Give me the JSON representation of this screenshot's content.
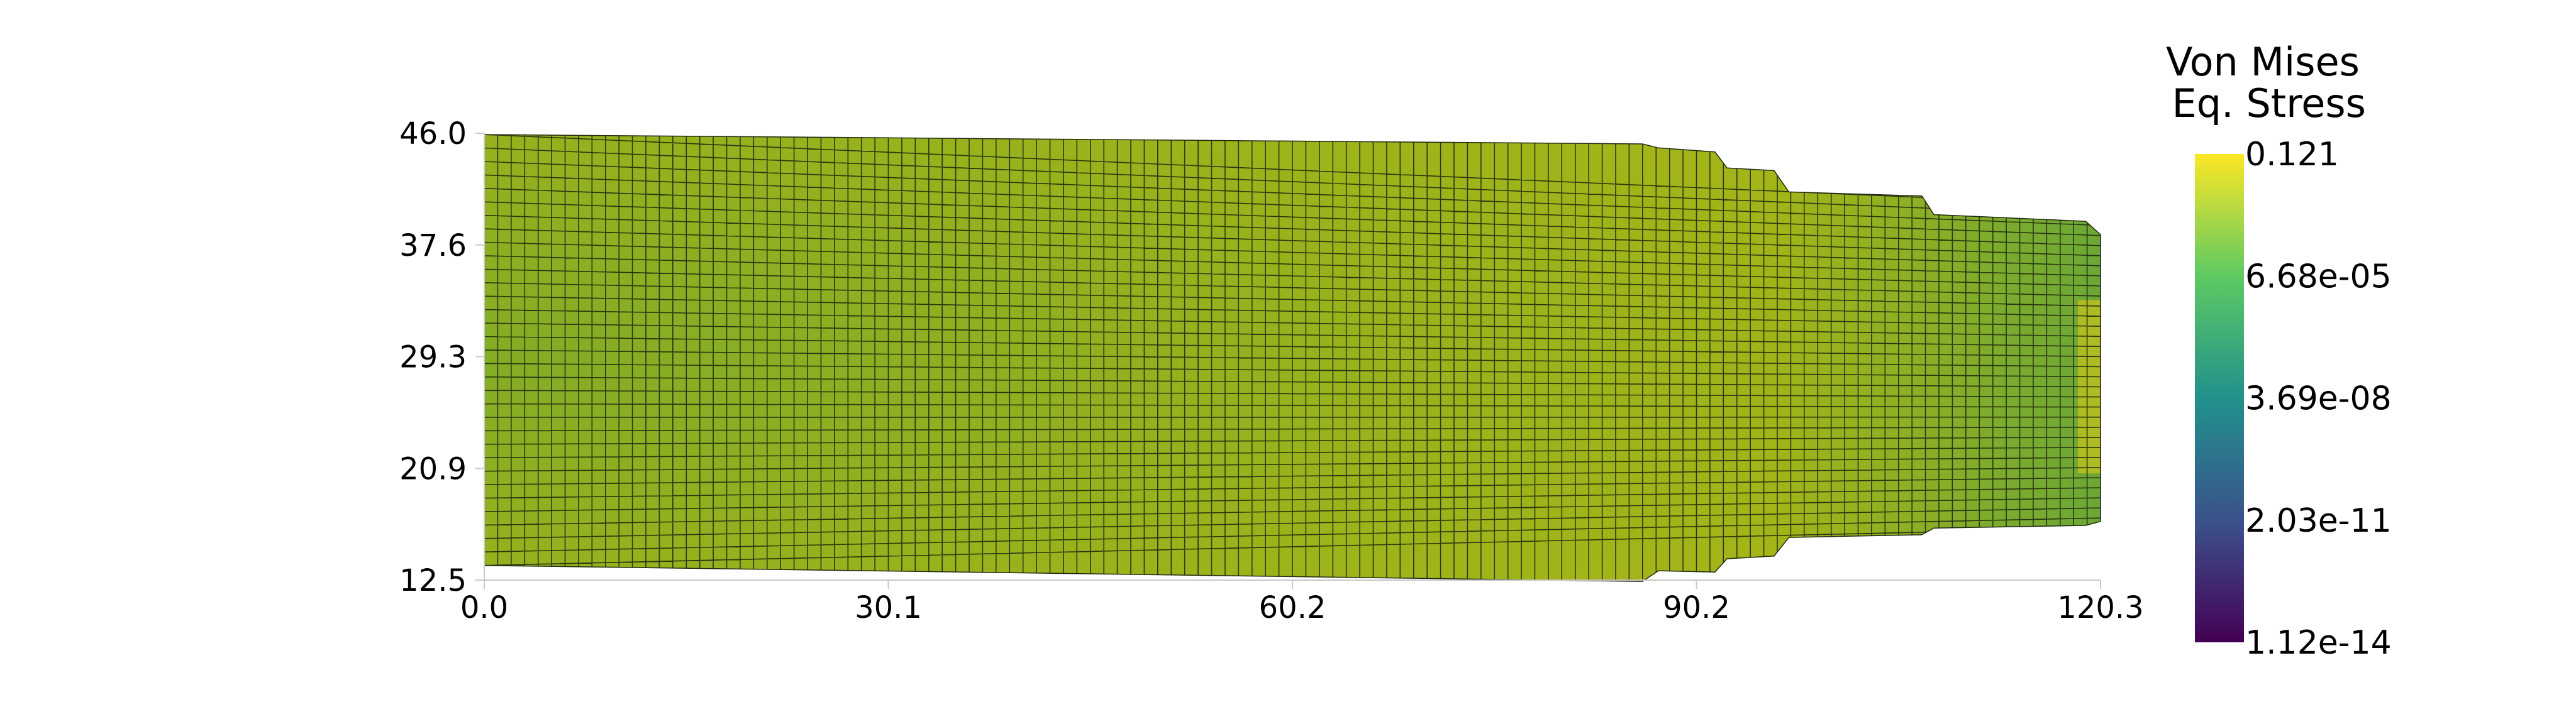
{
  "chart_data": {
    "type": "heatmap",
    "title": "",
    "xlabel": "",
    "ylabel": "",
    "xlim": [
      0.0,
      120.3
    ],
    "ylim": [
      12.5,
      46.0
    ],
    "x_ticks": [
      "0.0",
      "30.1",
      "60.2",
      "90.2",
      "120.3"
    ],
    "y_ticks": [
      "46.0",
      "37.6",
      "29.3",
      "20.9",
      "12.5"
    ],
    "grid": false,
    "colorbar": {
      "title_lines": [
        "Von Mises",
        "Eq. Stress"
      ],
      "tick_labels": [
        "0.121",
        "6.68e-05",
        "3.69e-08",
        "2.03e-11",
        "1.12e-14"
      ],
      "min": 1.12e-14,
      "max": 0.121,
      "scale": "log",
      "colormap": "viridis",
      "colormap_stops": [
        "#440154",
        "#3b528b",
        "#21918c",
        "#5ec962",
        "#fde725"
      ],
      "placement": "right"
    },
    "mesh": {
      "columns": 120,
      "rows": 32,
      "edge_color": "#1f2a10",
      "outline_top": [
        [
          0.0,
          45.9
        ],
        [
          86.2,
          45.2
        ],
        [
          87.4,
          44.9
        ],
        [
          91.6,
          44.6
        ],
        [
          92.5,
          43.4
        ],
        [
          96.0,
          43.2
        ],
        [
          97.1,
          41.6
        ],
        [
          107.0,
          41.3
        ],
        [
          107.9,
          39.9
        ],
        [
          119.2,
          39.4
        ],
        [
          120.3,
          38.4
        ]
      ],
      "outline_bottom": [
        [
          0.0,
          13.6
        ],
        [
          86.2,
          12.4
        ],
        [
          87.4,
          13.2
        ],
        [
          91.6,
          13.1
        ],
        [
          92.5,
          14.1
        ],
        [
          96.0,
          14.3
        ],
        [
          97.1,
          15.7
        ],
        [
          107.0,
          15.9
        ],
        [
          107.9,
          16.4
        ],
        [
          119.2,
          16.6
        ],
        [
          120.3,
          16.9
        ]
      ],
      "background_color": "#a4b517",
      "green_tint_color": "#68a531",
      "tail_color": "#5fa43d",
      "right_edge_highlight": "#c6c11c"
    }
  }
}
